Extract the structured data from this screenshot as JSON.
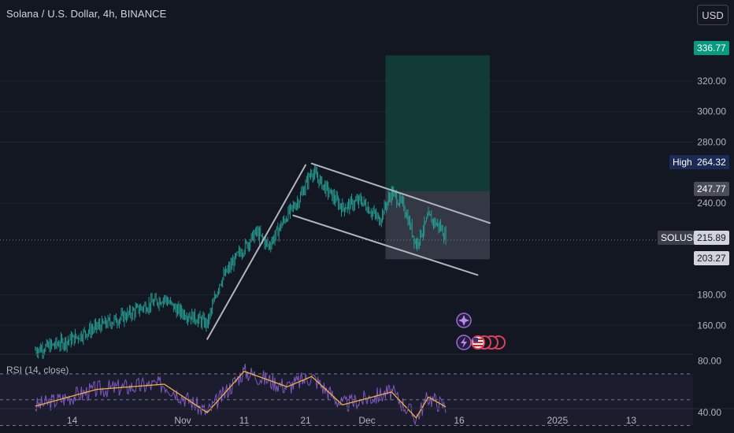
{
  "header": {
    "symbol_line": "Solana / U.S. Dollar, 4h, BINANCE"
  },
  "currency_button": "USD",
  "price_tags": {
    "target": "336.77",
    "high_label": "High",
    "high": "264.32",
    "entry": "247.77",
    "symbol": "SOLUSD",
    "last": "215.89",
    "stop": "203.27"
  },
  "colors": {
    "background": "#131722",
    "candle": "#26a69a",
    "target_zone": "#123b35",
    "stop_zone": "#3a3e4a",
    "rsi_line": "#7e57c2",
    "rsi_ma": "#f0b33a",
    "tag_green": "#089981",
    "tag_navy": "#1c2a56",
    "channel": "#b2b5be"
  },
  "chart_data": {
    "type": "candlestick",
    "symbol": "Solana / U.S. Dollar",
    "interval": "4h",
    "exchange": "BINANCE",
    "x_ticks": [
      "14",
      "Nov",
      "11",
      "21",
      "Dec",
      "16",
      "2025",
      "13"
    ],
    "y_ticks": [
      160,
      180,
      240,
      280,
      300,
      320
    ],
    "ylim": [
      142,
      345
    ],
    "price_path": [
      {
        "date": "Oct 8",
        "close": 144
      },
      {
        "date": "Oct 11",
        "close": 147
      },
      {
        "date": "Oct 14",
        "close": 151
      },
      {
        "date": "Oct 18",
        "close": 159
      },
      {
        "date": "Oct 22",
        "close": 165
      },
      {
        "date": "Oct 25",
        "close": 171
      },
      {
        "date": "Oct 29",
        "close": 178
      },
      {
        "date": "Oct 31",
        "close": 170
      },
      {
        "date": "Nov 3",
        "close": 165
      },
      {
        "date": "Nov 5",
        "close": 161
      },
      {
        "date": "Nov 7",
        "close": 188
      },
      {
        "date": "Nov 10",
        "close": 206
      },
      {
        "date": "Nov 13",
        "close": 221
      },
      {
        "date": "Nov 15",
        "close": 212
      },
      {
        "date": "Nov 18",
        "close": 232
      },
      {
        "date": "Nov 20",
        "close": 243
      },
      {
        "date": "Nov 22",
        "close": 261
      },
      {
        "date": "Nov 24",
        "close": 251
      },
      {
        "date": "Nov 27",
        "close": 237
      },
      {
        "date": "Nov 30",
        "close": 242
      },
      {
        "date": "Dec 3",
        "close": 229
      },
      {
        "date": "Dec 5",
        "close": 247
      },
      {
        "date": "Dec 7",
        "close": 238
      },
      {
        "date": "Dec 9",
        "close": 213
      },
      {
        "date": "Dec 11",
        "close": 231
      },
      {
        "date": "Dec 13",
        "close": 224
      },
      {
        "date": "Dec 14",
        "close": 216
      }
    ],
    "rsi": {
      "label": "RSI (14, close)",
      "y_ticks": [
        80,
        40
      ],
      "bands": [
        70,
        50,
        30
      ],
      "path": [
        {
          "date": "Oct 8",
          "rsi": 45
        },
        {
          "date": "Oct 18",
          "rsi": 58
        },
        {
          "date": "Oct 29",
          "rsi": 62
        },
        {
          "date": "Nov 5",
          "rsi": 40
        },
        {
          "date": "Nov 11",
          "rsi": 72
        },
        {
          "date": "Nov 18",
          "rsi": 60
        },
        {
          "date": "Nov 22",
          "rsi": 68
        },
        {
          "date": "Nov 27",
          "rsi": 46
        },
        {
          "date": "Dec 5",
          "rsi": 56
        },
        {
          "date": "Dec 9",
          "rsi": 36
        },
        {
          "date": "Dec 11",
          "rsi": 52
        },
        {
          "date": "Dec 14",
          "rsi": 44
        }
      ]
    },
    "position": {
      "entry": 247.77,
      "target": 336.77,
      "stop": 203.27
    },
    "high": 264.32,
    "last": 215.89,
    "channel": {
      "upper": [
        {
          "date": "Nov 22",
          "price": 266
        },
        {
          "date": "Dec 21",
          "price": 227
        }
      ],
      "lower": [
        {
          "date": "Nov 19",
          "price": 232
        },
        {
          "date": "Dec 19",
          "price": 193
        }
      ],
      "impulse": [
        {
          "date": "Nov 5",
          "price": 151
        },
        {
          "date": "Nov 21",
          "price": 265
        }
      ]
    }
  }
}
